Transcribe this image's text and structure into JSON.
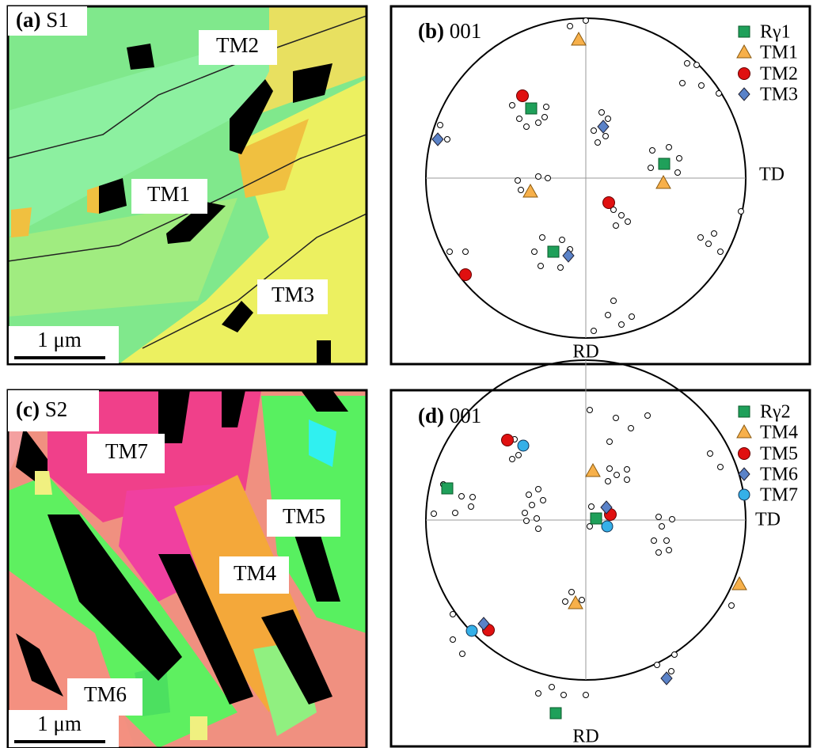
{
  "panels": [
    {
      "label": "(a)",
      "sample": "S1",
      "annotations": [
        "TM2",
        "TM1",
        "TM3"
      ],
      "scale_bar": "1 μm"
    },
    {
      "label": "(b)",
      "plane": "001",
      "legend": [
        "Rγ1",
        "TM1",
        "TM2",
        "TM3"
      ],
      "axis_right": "TD",
      "axis_bottom": "RD"
    },
    {
      "label": "(c)",
      "sample": "S2",
      "annotations": [
        "TM7",
        "TM5",
        "TM4",
        "TM6"
      ],
      "scale_bar": "1 μm"
    },
    {
      "label": "(d)",
      "plane": "001",
      "legend": [
        "Rγ2",
        "TM4",
        "TM5",
        "TM6",
        "TM7"
      ],
      "axis_right": "TD",
      "axis_bottom": "RD"
    }
  ]
}
